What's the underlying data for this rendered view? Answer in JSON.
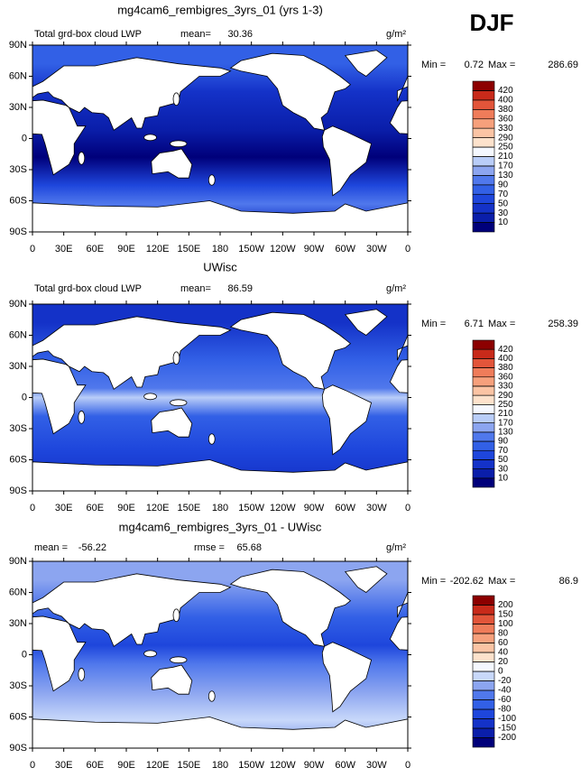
{
  "season": "DJF",
  "lat_ticks": [
    {
      "value": 90,
      "label": "90N"
    },
    {
      "value": 60,
      "label": "60N"
    },
    {
      "value": 30,
      "label": "30N"
    },
    {
      "value": 0,
      "label": "0"
    },
    {
      "value": -30,
      "label": "30S"
    },
    {
      "value": -60,
      "label": "60S"
    },
    {
      "value": -90,
      "label": "90S"
    }
  ],
  "lon_ticks": [
    {
      "value": 0,
      "label": "0"
    },
    {
      "value": 30,
      "label": "30E"
    },
    {
      "value": 60,
      "label": "60E"
    },
    {
      "value": 90,
      "label": "90E"
    },
    {
      "value": 120,
      "label": "120E"
    },
    {
      "value": 150,
      "label": "150E"
    },
    {
      "value": 180,
      "label": "180"
    },
    {
      "value": 210,
      "label": "150W"
    },
    {
      "value": 240,
      "label": "120W"
    },
    {
      "value": 270,
      "label": "90W"
    },
    {
      "value": 300,
      "label": "60W"
    },
    {
      "value": 330,
      "label": "30W"
    },
    {
      "value": 360,
      "label": "0"
    }
  ],
  "panels": [
    {
      "title": "mg4cam6_rembigres_3yrs_01 (yrs 1-3)",
      "field_label": "Total grd-box cloud LWP",
      "stats": [
        {
          "label": "mean=",
          "value": 30.36
        }
      ],
      "units": "g/m²",
      "min_label": "Min =",
      "min": 0.72,
      "max_label": "Max =",
      "max": 286.69,
      "colorbar": {
        "levels": [
          10,
          30,
          50,
          70,
          90,
          130,
          170,
          210,
          250,
          290,
          330,
          360,
          380,
          400,
          420
        ],
        "colors": [
          "#00007a",
          "#0a1eaa",
          "#1432c8",
          "#1e46dc",
          "#3260e6",
          "#5078ec",
          "#8ca5f0",
          "#b9cdf8",
          "#f5f8ff",
          "#fde2cc",
          "#fbc4a4",
          "#f6a07c",
          "#ef7c5a",
          "#e2553a",
          "#c82a1a",
          "#8c0000"
        ]
      }
    },
    {
      "title": "UWisc",
      "field_label": "Total grd-box cloud LWP",
      "stats": [
        {
          "label": "mean=",
          "value": 86.59
        }
      ],
      "units": "g/m²",
      "min_label": "Min =",
      "min": 6.71,
      "max_label": "Max =",
      "max": 258.39,
      "colorbar": {
        "levels": [
          10,
          30,
          50,
          70,
          90,
          130,
          170,
          210,
          250,
          290,
          330,
          360,
          380,
          400,
          420
        ],
        "colors": [
          "#00007a",
          "#0a1eaa",
          "#1432c8",
          "#1e46dc",
          "#3260e6",
          "#5078ec",
          "#8ca5f0",
          "#b9cdf8",
          "#f5f8ff",
          "#fde2cc",
          "#fbc4a4",
          "#f6a07c",
          "#ef7c5a",
          "#e2553a",
          "#c82a1a",
          "#8c0000"
        ]
      }
    },
    {
      "title": "mg4cam6_rembigres_3yrs_01 - UWisc",
      "stats": [
        {
          "label": "mean =",
          "value": -56.22
        },
        {
          "label": "rmse =",
          "value": 65.68
        }
      ],
      "units": "g/m²",
      "min_label": "Min =",
      "min": -202.62,
      "max_label": "Max =",
      "max": 86.9,
      "colorbar": {
        "levels": [
          -200,
          -150,
          -100,
          -80,
          -60,
          -40,
          -20,
          0,
          20,
          40,
          60,
          80,
          100,
          150,
          200
        ],
        "colors": [
          "#00007a",
          "#0a1eaa",
          "#1432c8",
          "#1e46dc",
          "#3260e6",
          "#5078ec",
          "#8ca5f0",
          "#c8d8fa",
          "#f5f8ff",
          "#fde2cc",
          "#fbc4a4",
          "#f6a07c",
          "#ef7c5a",
          "#e2553a",
          "#c82a1a",
          "#8c0000"
        ]
      }
    }
  ]
}
